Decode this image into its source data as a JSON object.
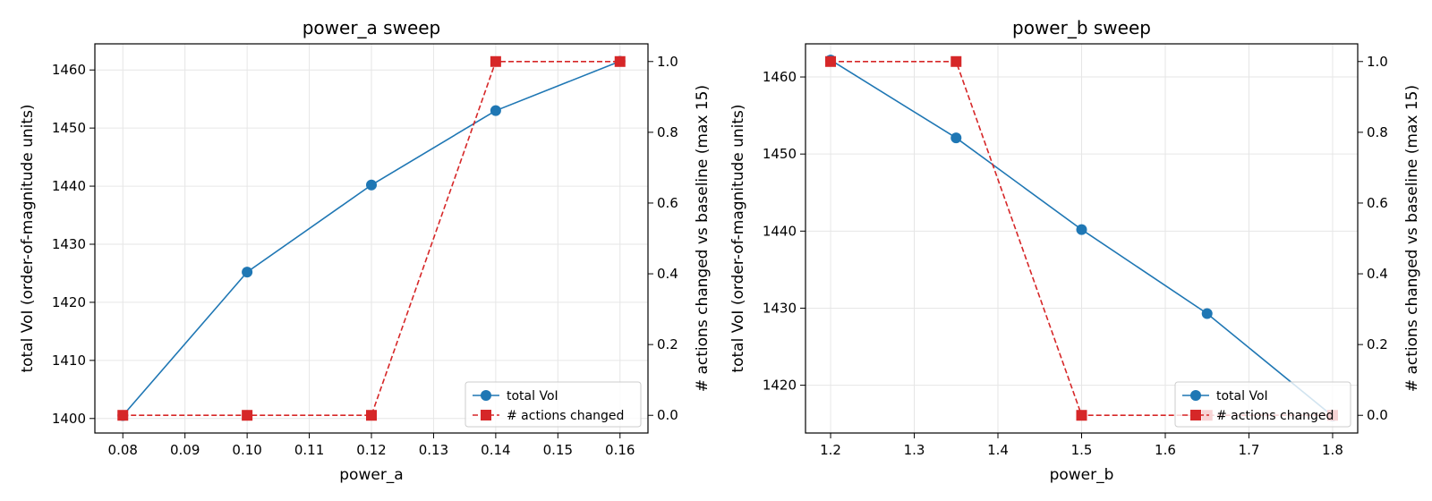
{
  "chart_data": [
    {
      "type": "line",
      "title": "power_a sweep",
      "xlabel": "power_a",
      "ylabel": "total VoI (order-of-magnitude units)",
      "y2label": "# actions changed vs baseline (max 15)",
      "x": [
        0.08,
        0.1,
        0.12,
        0.14,
        0.16
      ],
      "xlim": [
        0.0755,
        0.1645
      ],
      "xticks": [
        "0.08",
        "0.09",
        "0.10",
        "0.11",
        "0.12",
        "0.13",
        "0.14",
        "0.15",
        "0.16"
      ],
      "ylim": [
        1397.5,
        1464.5
      ],
      "yticks": [
        "1400",
        "1410",
        "1420",
        "1430",
        "1440",
        "1450",
        "1460"
      ],
      "y2lim": [
        -0.05,
        1.05
      ],
      "y2ticks": [
        "0.0",
        "0.2",
        "0.4",
        "0.6",
        "0.8",
        "1.0"
      ],
      "series": [
        {
          "name": "total VoI",
          "axis": "left",
          "color": "#1f77b4",
          "marker": "circle",
          "linestyle": "solid",
          "values": [
            1400.5,
            1425.2,
            1440.2,
            1453.0,
            1461.5
          ]
        },
        {
          "name": "# actions changed",
          "axis": "right",
          "color": "#d62728",
          "marker": "square",
          "linestyle": "dashed",
          "values": [
            0,
            0,
            0,
            1,
            1
          ]
        }
      ],
      "legend": "lower-right",
      "grid": true
    },
    {
      "type": "line",
      "title": "power_b sweep",
      "xlabel": "power_b",
      "ylabel": "total VoI (order-of-magnitude units)",
      "y2label": "# actions changed vs baseline (max 15)",
      "x": [
        1.2,
        1.35,
        1.5,
        1.65,
        1.8
      ],
      "xlim": [
        1.17,
        1.83
      ],
      "xticks": [
        "1.2",
        "1.3",
        "1.4",
        "1.5",
        "1.6",
        "1.7",
        "1.8"
      ],
      "ylim": [
        1413.8,
        1464.3
      ],
      "yticks": [
        "1420",
        "1430",
        "1440",
        "1450",
        "1460"
      ],
      "y2lim": [
        -0.05,
        1.05
      ],
      "y2ticks": [
        "0.0",
        "0.2",
        "0.4",
        "0.6",
        "0.8",
        "1.0"
      ],
      "series": [
        {
          "name": "total VoI",
          "axis": "left",
          "color": "#1f77b4",
          "marker": "circle",
          "linestyle": "solid",
          "values": [
            1462.2,
            1452.1,
            1440.2,
            1429.3,
            1416.0
          ]
        },
        {
          "name": "# actions changed",
          "axis": "right",
          "color": "#d62728",
          "marker": "square",
          "linestyle": "dashed",
          "values": [
            1,
            1,
            0,
            0,
            0
          ]
        }
      ],
      "legend": "lower-right",
      "grid": true
    }
  ]
}
